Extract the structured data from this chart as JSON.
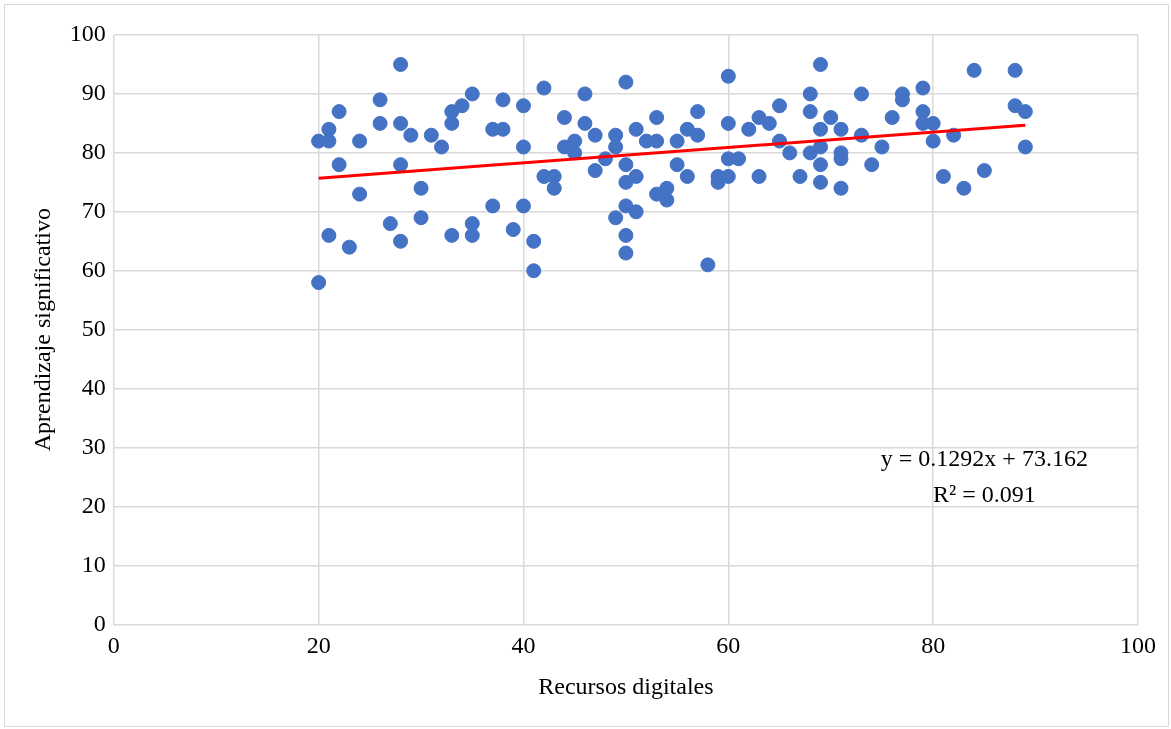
{
  "chart_data": {
    "type": "scatter",
    "xlabel": "Recursos digitales",
    "ylabel": "Aprendizaje significativo",
    "annotations": [
      "y = 0.1292x + 73.162",
      "R² = 0.091"
    ],
    "series": [
      {
        "color": "#4472c4",
        "marker": "circle",
        "x": [
          20,
          20,
          21,
          21,
          21,
          22,
          22,
          23,
          24,
          24,
          26,
          26,
          27,
          28,
          28,
          28,
          28,
          29,
          30,
          30,
          31,
          32,
          33,
          33,
          33,
          34,
          35,
          35,
          35,
          37,
          37,
          38,
          38,
          39,
          40,
          40,
          40,
          41,
          41,
          42,
          42,
          43,
          43,
          44,
          44,
          45,
          45,
          46,
          46,
          47,
          47,
          48,
          49,
          49,
          49,
          50,
          50,
          50,
          50,
          50,
          50,
          51,
          51,
          51,
          52,
          53,
          53,
          53,
          54,
          54,
          55,
          55,
          56,
          56,
          57,
          57,
          58,
          59,
          59,
          60,
          60,
          60,
          60,
          61,
          62,
          63,
          63,
          64,
          65,
          65,
          66,
          67,
          68,
          68,
          68,
          69,
          69,
          69,
          69,
          69,
          70,
          71,
          71,
          71,
          71,
          73,
          73,
          74,
          75,
          76,
          77,
          77,
          79,
          79,
          79,
          80,
          80,
          81,
          82,
          83,
          84,
          85,
          88,
          88,
          89,
          89
        ],
        "values": [
          82,
          58,
          84,
          82,
          66,
          87,
          78,
          64,
          82,
          73,
          89,
          85,
          68,
          95,
          85,
          78,
          65,
          83,
          74,
          69,
          83,
          81,
          87,
          85,
          66,
          88,
          90,
          68,
          66,
          84,
          71,
          89,
          84,
          67,
          88,
          81,
          71,
          65,
          60,
          91,
          76,
          76,
          74,
          86,
          81,
          82,
          80,
          90,
          85,
          83,
          77,
          79,
          83,
          81,
          69,
          92,
          78,
          75,
          71,
          66,
          63,
          84,
          76,
          70,
          82,
          86,
          82,
          73,
          74,
          72,
          82,
          78,
          84,
          76,
          87,
          83,
          61,
          76,
          75,
          93,
          85,
          79,
          76,
          79,
          84,
          86,
          76,
          85,
          88,
          82,
          80,
          76,
          90,
          87,
          80,
          95,
          84,
          81,
          78,
          75,
          86,
          84,
          80,
          79,
          74,
          90,
          83,
          78,
          81,
          86,
          90,
          89,
          91,
          87,
          85,
          85,
          82,
          76,
          83,
          74,
          94,
          77,
          94,
          88,
          87,
          81
        ]
      },
      {
        "type": "line",
        "color": "#ff0000",
        "marker": "none",
        "x": [
          20,
          89
        ],
        "values": [
          75.7,
          84.7
        ]
      }
    ],
    "xlim": [
      0,
      100
    ],
    "xticks": [
      0,
      20,
      40,
      60,
      80,
      100
    ],
    "ylim": [
      0,
      100
    ],
    "yticks": [
      0,
      10,
      20,
      30,
      40,
      50,
      60,
      70,
      80,
      90,
      100
    ],
    "grid": true,
    "legend": false
  }
}
